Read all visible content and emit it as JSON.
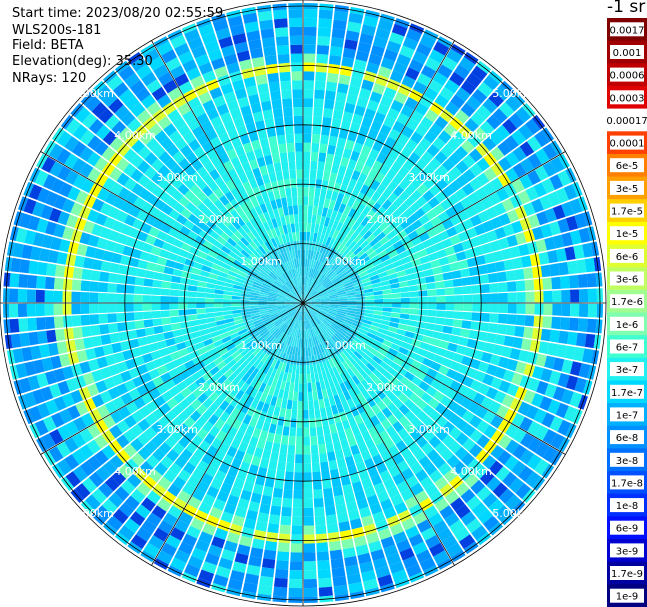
{
  "info": {
    "start_time": "Start time: 2023/08/20 02:55:59",
    "instrument": "WLS200s-181",
    "field": "Field: BETA",
    "elevation": "Elevation(deg): 35.30",
    "nrays": "NRays: 120"
  },
  "colorbar": {
    "unit": "-1 sr",
    "labels": [
      "0.0017",
      "0.001",
      "0.0006",
      "0.0003",
      "0.00017",
      "0.0001",
      "6e-5",
      "3e-5",
      "1.7e-5",
      "1e-5",
      "6e-6",
      "3e-6",
      "1.7e-6",
      "1e-6",
      "6e-7",
      "3e-7",
      "1.7e-7",
      "1e-7",
      "6e-8",
      "3e-8",
      "1.7e-8",
      "1e-8",
      "6e-9",
      "3e-9",
      "1.7e-9",
      "1e-9"
    ],
    "colors": [
      "#800000",
      "#a00000",
      "#c00000",
      "#e00000",
      "#ffffff",
      "#ff4000",
      "#ff8000",
      "#ffa000",
      "#ffd000",
      "#ffff00",
      "#e0ff30",
      "#c0ff60",
      "#a0ff90",
      "#80ffb0",
      "#40ffd0",
      "#20f0f0",
      "#00d8ff",
      "#00b0ff",
      "#0090ff",
      "#0070ff",
      "#0050ff",
      "#0030ff",
      "#0010ff",
      "#0000d0",
      "#0000a0",
      "#000080"
    ]
  },
  "chart_data": {
    "type": "polar-ppi",
    "field": "BETA",
    "nrays": 120,
    "range_rings_km": [
      1,
      2,
      3,
      4,
      5
    ],
    "range_ring_labels": [
      "1.00km",
      "2.00km",
      "3.00km",
      "4.00km",
      "5.00km"
    ],
    "max_range_km": 5.05,
    "spoke_interval_deg": 30,
    "feature": "enhanced backscatter ring (yellow, ~1e-5 sr-1) near 3.95 km range"
  }
}
